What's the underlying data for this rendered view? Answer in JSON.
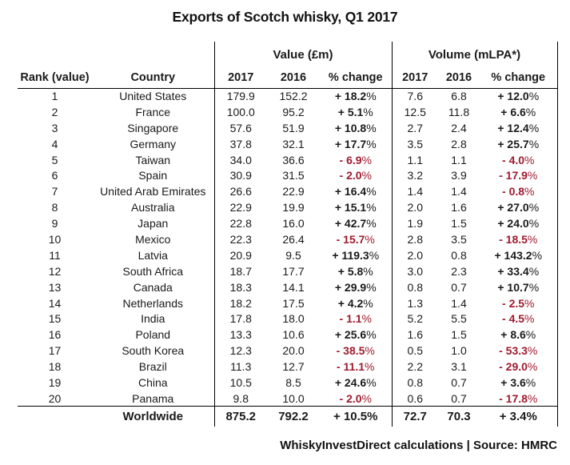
{
  "title": "Exports of Scotch whisky, Q1 2017",
  "footer": "WhiskyInvestDirect calculations | Source: HMRC",
  "colors": {
    "positive_text": "#1a1a1a",
    "negative_text": "#9e1b2e",
    "rule": "#000000",
    "background": "#ffffff"
  },
  "chart_data": {
    "type": "table",
    "title": "Exports of Scotch whisky, Q1 2017",
    "group_headers": [
      "Value (£m)",
      "Volume (mLPA*)"
    ],
    "columns": [
      "Rank (value)",
      "Country",
      "2017",
      "2016",
      "% change",
      "2017",
      "2016",
      "% change"
    ],
    "rows": [
      [
        "1",
        "United States",
        "179.9",
        "152.2",
        "+ 18.2%",
        "7.6",
        "6.8",
        "+ 12.0%"
      ],
      [
        "2",
        "France",
        "100.0",
        "95.2",
        "+ 5.1%",
        "12.5",
        "11.8",
        "+ 6.6%"
      ],
      [
        "3",
        "Singapore",
        "57.6",
        "51.9",
        "+ 10.8%",
        "2.7",
        "2.4",
        "+ 12.4%"
      ],
      [
        "4",
        "Germany",
        "37.8",
        "32.1",
        "+ 17.7%",
        "3.5",
        "2.8",
        "+ 25.7%"
      ],
      [
        "5",
        "Taiwan",
        "34.0",
        "36.6",
        "- 6.9%",
        "1.1",
        "1.1",
        "- 4.0%"
      ],
      [
        "6",
        "Spain",
        "30.9",
        "31.5",
        "- 2.0%",
        "3.2",
        "3.9",
        "- 17.9%"
      ],
      [
        "7",
        "United Arab Emirates",
        "26.6",
        "22.9",
        "+ 16.4%",
        "1.4",
        "1.4",
        "- 0.8%"
      ],
      [
        "8",
        "Australia",
        "22.9",
        "19.9",
        "+ 15.1%",
        "2.0",
        "1.6",
        "+ 27.0%"
      ],
      [
        "9",
        "Japan",
        "22.8",
        "16.0",
        "+ 42.7%",
        "1.9",
        "1.5",
        "+ 24.0%"
      ],
      [
        "10",
        "Mexico",
        "22.3",
        "26.4",
        "- 15.7%",
        "2.8",
        "3.5",
        "- 18.5%"
      ],
      [
        "11",
        "Latvia",
        "20.9",
        "9.5",
        "+ 119.3%",
        "2.0",
        "0.8",
        "+ 143.2%"
      ],
      [
        "12",
        "South Africa",
        "18.7",
        "17.7",
        "+ 5.8%",
        "3.0",
        "2.3",
        "+ 33.4%"
      ],
      [
        "13",
        "Canada",
        "18.3",
        "14.1",
        "+ 29.9%",
        "0.8",
        "0.7",
        "+ 10.7%"
      ],
      [
        "14",
        "Netherlands",
        "18.2",
        "17.5",
        "+ 4.2%",
        "1.3",
        "1.4",
        "- 2.5%"
      ],
      [
        "15",
        "India",
        "17.8",
        "18.0",
        "- 1.1%",
        "5.2",
        "5.5",
        "- 4.5%"
      ],
      [
        "16",
        "Poland",
        "13.3",
        "10.6",
        "+ 25.6%",
        "1.6",
        "1.5",
        "+ 8.6%"
      ],
      [
        "17",
        "South Korea",
        "12.3",
        "20.0",
        "- 38.5%",
        "0.5",
        "1.0",
        "- 53.3%"
      ],
      [
        "18",
        "Brazil",
        "11.3",
        "12.7",
        "- 11.1%",
        "2.2",
        "3.1",
        "- 29.0%"
      ],
      [
        "19",
        "China",
        "10.5",
        "8.5",
        "+ 24.6%",
        "0.8",
        "0.7",
        "+ 3.6%"
      ],
      [
        "20",
        "Panama",
        "9.8",
        "10.0",
        "- 2.0%",
        "0.6",
        "0.7",
        "- 17.8%"
      ]
    ],
    "total": [
      "",
      "Worldwide",
      "875.2",
      "792.2",
      "+ 10.5%",
      "72.7",
      "70.3",
      "+ 3.4%"
    ],
    "footnote": "WhiskyInvestDirect calculations | Source: HMRC"
  }
}
